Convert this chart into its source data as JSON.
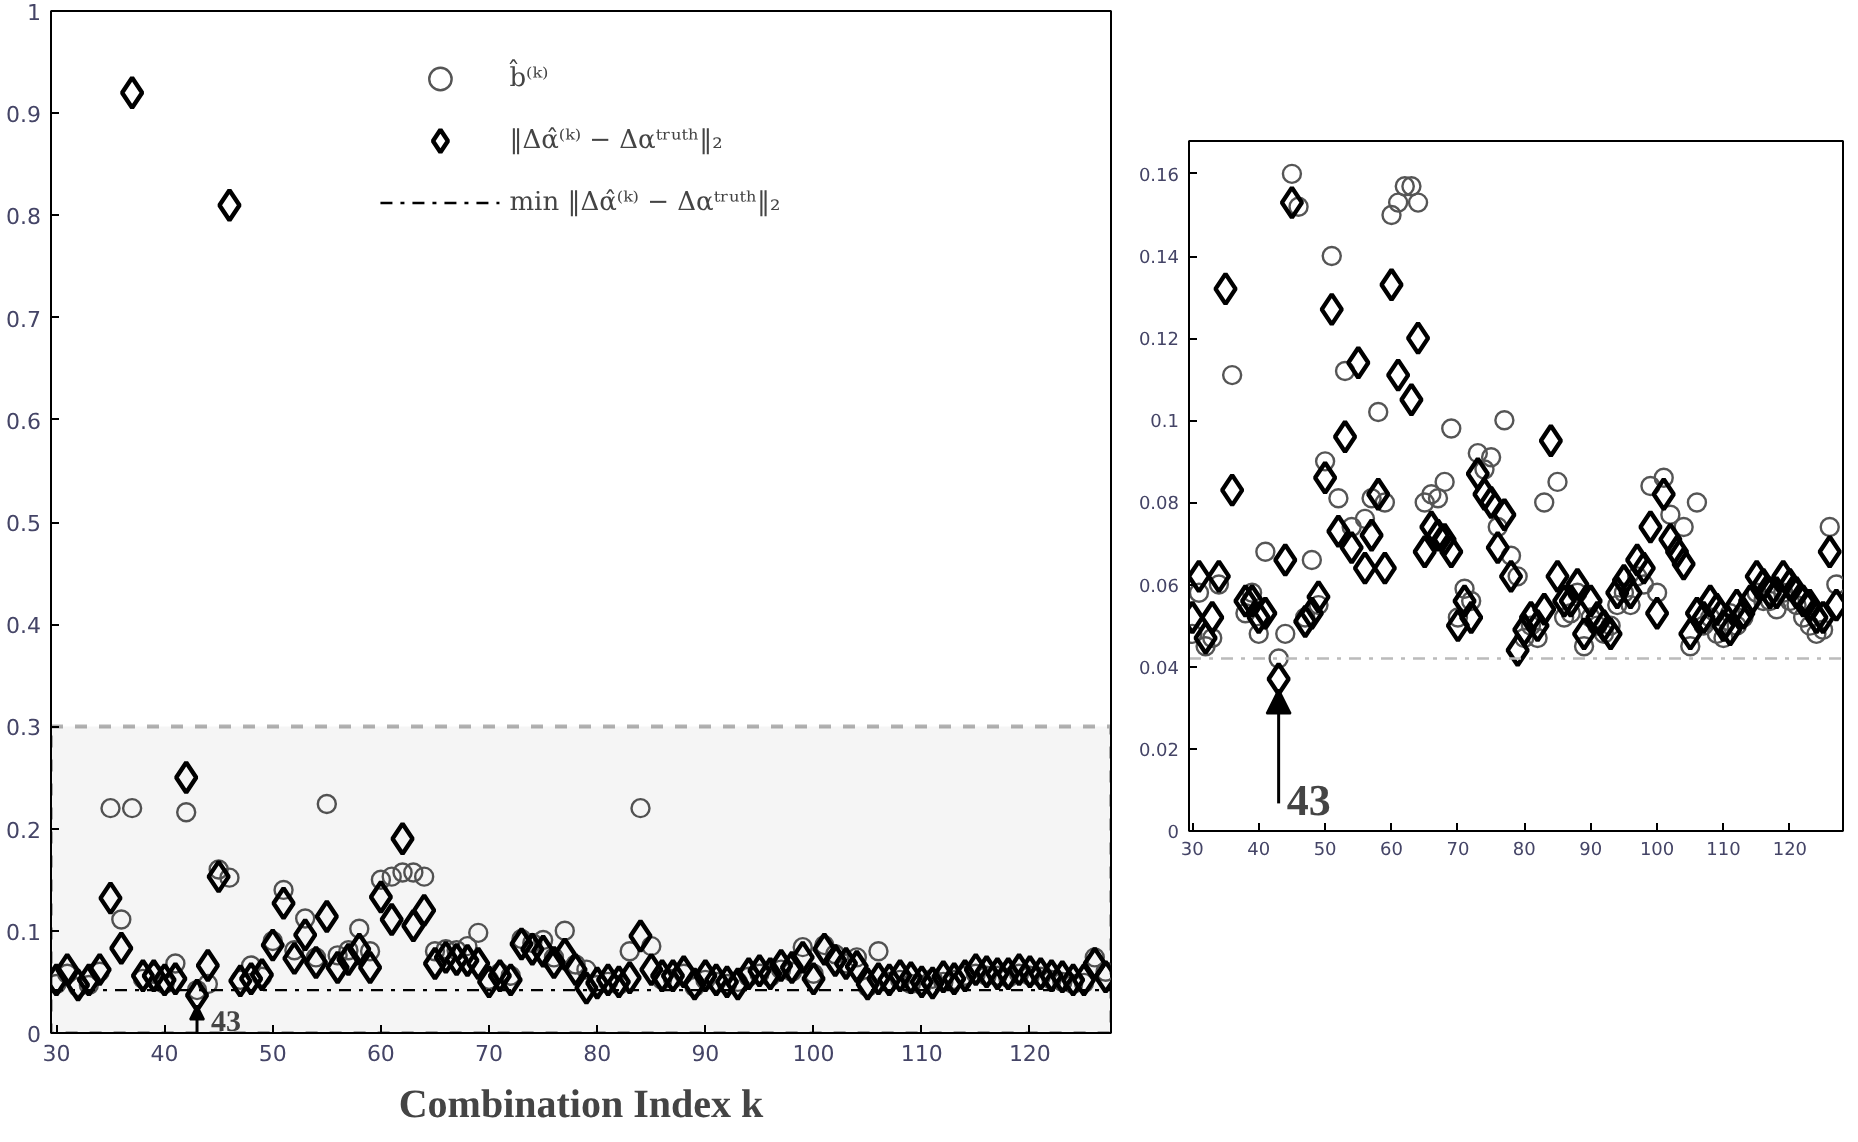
{
  "chart_data": [
    {
      "type": "scatter",
      "xlabel": "Combination Index k",
      "xlim": [
        29.5,
        127.5
      ],
      "ylim": [
        0,
        1
      ],
      "xticks": [
        30,
        40,
        50,
        60,
        70,
        80,
        90,
        100,
        110,
        120
      ],
      "yticks": [
        0,
        0.1,
        0.2,
        0.3,
        0.4,
        0.5,
        0.6,
        0.7,
        0.8,
        0.9,
        1
      ],
      "legend": "top",
      "grid": false,
      "x": [
        30,
        31,
        32,
        33,
        34,
        35,
        36,
        37,
        38,
        39,
        40,
        41,
        42,
        43,
        44,
        45,
        46,
        47,
        48,
        49,
        50,
        51,
        52,
        53,
        54,
        55,
        56,
        57,
        58,
        59,
        60,
        61,
        62,
        63,
        64,
        65,
        66,
        67,
        68,
        69,
        70,
        71,
        72,
        73,
        74,
        75,
        76,
        77,
        78,
        79,
        80,
        81,
        82,
        83,
        84,
        85,
        86,
        87,
        88,
        89,
        90,
        91,
        92,
        93,
        94,
        95,
        96,
        97,
        98,
        99,
        100,
        101,
        102,
        103,
        104,
        105,
        106,
        107,
        108,
        109,
        110,
        111,
        112,
        113,
        114,
        115,
        116,
        117,
        118,
        119,
        120,
        121,
        122,
        123,
        124,
        125,
        126,
        127
      ],
      "series": [
        {
          "name": "b̂⁽ᵏ⁾",
          "marker": "circle",
          "color": "#555555",
          "values": [
            0.048,
            0.058,
            0.045,
            0.047,
            0.06,
            0.22,
            0.111,
            0.22,
            0.053,
            0.058,
            0.048,
            0.068,
            0.216,
            0.042,
            0.048,
            0.16,
            0.152,
            0.052,
            0.066,
            0.055,
            0.09,
            0.14,
            0.081,
            0.112,
            0.074,
            0.224,
            0.076,
            0.081,
            0.102,
            0.08,
            0.15,
            0.153,
            0.157,
            0.157,
            0.153,
            0.08,
            0.082,
            0.081,
            0.085,
            0.098,
            0.052,
            0.059,
            0.056,
            0.092,
            0.088,
            0.091,
            0.074,
            0.1,
            0.067,
            0.062,
            0.047,
            0.05,
            0.047,
            0.08,
            0.22,
            0.085,
            0.052,
            0.053,
            0.058,
            0.045,
            0.052,
            0.05,
            0.048,
            0.05,
            0.055,
            0.058,
            0.055,
            0.062,
            0.06,
            0.084,
            0.058,
            0.086,
            0.077,
            0.068,
            0.074,
            0.045,
            0.08,
            0.05,
            0.052,
            0.048,
            0.047,
            0.053,
            0.05,
            0.052,
            0.056,
            0.058,
            0.056,
            0.056,
            0.054,
            0.058,
            0.056,
            0.055,
            0.052,
            0.05,
            0.048,
            0.049,
            0.074,
            0.06
          ]
        },
        {
          "name": "‖Δα̂⁽ᵏ⁾ − Δαᵗʳᵘᵗʰ‖₂",
          "marker": "diamond",
          "color": "#000000",
          "values": [
            0.052,
            0.062,
            0.047,
            0.052,
            0.062,
            0.132,
            0.083,
            0.92,
            0.056,
            0.056,
            0.052,
            0.053,
            0.25,
            0.037,
            0.066,
            0.153,
            0.81,
            0.051,
            0.053,
            0.057,
            0.086,
            0.127,
            0.073,
            0.096,
            0.069,
            0.114,
            0.064,
            0.072,
            0.082,
            0.064,
            0.133,
            0.111,
            0.19,
            0.105,
            0.12,
            0.068,
            0.074,
            0.072,
            0.071,
            0.068,
            0.05,
            0.056,
            0.052,
            0.087,
            0.082,
            0.08,
            0.069,
            0.077,
            0.062,
            0.044,
            0.049,
            0.052,
            0.05,
            0.054,
            0.095,
            0.062,
            0.056,
            0.056,
            0.06,
            0.048,
            0.056,
            0.052,
            0.05,
            0.048,
            0.058,
            0.061,
            0.058,
            0.066,
            0.064,
            0.074,
            0.053,
            0.082,
            0.071,
            0.068,
            0.065,
            0.048,
            0.053,
            0.052,
            0.056,
            0.054,
            0.05,
            0.049,
            0.055,
            0.053,
            0.056,
            0.062,
            0.06,
            0.058,
            0.058,
            0.062,
            0.06,
            0.058,
            0.056,
            0.055,
            0.052,
            0.052,
            0.068,
            0.055
          ]
        }
      ],
      "ref_lines": [
        {
          "axis": "y",
          "value": 0.042,
          "label": "min ‖Δα̂⁽ᵏ⁾ − Δαᵗʳᵘᵗʰ‖₂",
          "color": "#000000",
          "line_style": "dashdot"
        }
      ],
      "bands": [
        {
          "axis": "y",
          "from": 0,
          "to": 0.3,
          "color": "#000000"
        }
      ],
      "annotations": [
        {
          "text": "43",
          "x": 43,
          "y": 0.037
        }
      ]
    },
    {
      "type": "scatter",
      "xlim": [
        29.5,
        128
      ],
      "ylim": [
        0,
        0.168
      ],
      "xticks": [
        30,
        40,
        50,
        60,
        70,
        80,
        90,
        100,
        110,
        120
      ],
      "yticks": [
        0,
        0.02,
        0.04,
        0.06,
        0.08,
        0.1,
        0.12,
        0.14,
        0.16
      ],
      "grid": false,
      "x": [
        30,
        31,
        32,
        33,
        34,
        35,
        36,
        37,
        38,
        39,
        40,
        41,
        42,
        43,
        44,
        45,
        46,
        47,
        48,
        49,
        50,
        51,
        52,
        53,
        54,
        55,
        56,
        57,
        58,
        59,
        60,
        61,
        62,
        63,
        64,
        65,
        66,
        67,
        68,
        69,
        70,
        71,
        72,
        73,
        74,
        75,
        76,
        77,
        78,
        79,
        80,
        81,
        82,
        83,
        84,
        85,
        86,
        87,
        88,
        89,
        90,
        91,
        92,
        93,
        94,
        95,
        96,
        97,
        98,
        99,
        100,
        101,
        102,
        103,
        104,
        105,
        106,
        107,
        108,
        109,
        110,
        111,
        112,
        113,
        114,
        115,
        116,
        117,
        118,
        119,
        120,
        121,
        122,
        123,
        124,
        125,
        126,
        127
      ],
      "series": [
        {
          "marker": "circle",
          "color": "#555555",
          "values": [
            0.048,
            0.058,
            0.045,
            0.047,
            0.06,
            null,
            0.111,
            null,
            0.053,
            0.058,
            0.048,
            0.068,
            null,
            0.042,
            0.048,
            0.16,
            0.152,
            0.052,
            0.066,
            0.055,
            0.09,
            0.14,
            0.081,
            0.112,
            0.074,
            null,
            0.076,
            0.081,
            0.102,
            0.08,
            0.15,
            0.153,
            0.157,
            0.157,
            0.153,
            0.08,
            0.082,
            0.081,
            0.085,
            0.098,
            0.052,
            0.059,
            0.056,
            0.092,
            0.088,
            0.091,
            0.074,
            0.1,
            0.067,
            0.062,
            0.047,
            0.05,
            0.047,
            0.08,
            null,
            0.085,
            0.052,
            0.053,
            0.058,
            0.045,
            0.052,
            0.05,
            0.048,
            0.05,
            0.055,
            0.058,
            0.055,
            0.062,
            0.06,
            0.084,
            0.058,
            0.086,
            0.077,
            null,
            0.074,
            0.045,
            0.08,
            0.05,
            0.052,
            0.048,
            0.047,
            0.053,
            0.05,
            0.052,
            null,
            0.058,
            0.056,
            0.056,
            0.054,
            0.058,
            0.056,
            0.055,
            0.052,
            0.05,
            0.048,
            0.049,
            0.074,
            0.06
          ]
        },
        {
          "marker": "diamond",
          "color": "#000000",
          "values": [
            0.052,
            0.062,
            0.047,
            0.052,
            0.062,
            0.132,
            0.083,
            null,
            0.056,
            0.056,
            0.052,
            0.053,
            null,
            0.037,
            0.066,
            0.153,
            null,
            0.051,
            0.053,
            0.057,
            0.086,
            0.127,
            0.073,
            0.096,
            0.069,
            0.114,
            0.064,
            0.072,
            0.082,
            0.064,
            0.133,
            0.111,
            null,
            0.105,
            0.12,
            0.068,
            0.074,
            0.072,
            0.071,
            0.068,
            0.05,
            0.056,
            0.052,
            0.087,
            0.082,
            0.08,
            0.069,
            0.077,
            0.062,
            0.044,
            0.049,
            0.052,
            0.05,
            0.054,
            0.095,
            0.062,
            0.056,
            0.056,
            0.06,
            0.048,
            0.056,
            0.052,
            0.05,
            0.048,
            0.058,
            0.061,
            0.058,
            0.066,
            0.064,
            0.074,
            0.053,
            0.082,
            0.071,
            0.068,
            0.065,
            0.048,
            0.053,
            0.052,
            0.056,
            0.054,
            0.05,
            0.049,
            0.055,
            0.053,
            0.056,
            0.062,
            0.06,
            0.058,
            0.058,
            0.062,
            0.06,
            0.058,
            0.056,
            0.055,
            0.052,
            0.052,
            0.068,
            0.055
          ]
        }
      ],
      "ref_lines": [
        {
          "axis": "y",
          "value": 0.042,
          "color": "#bbbbbb",
          "line_style": "dashdot"
        }
      ],
      "annotations": [
        {
          "text": "43",
          "x": 43,
          "y": 0.037
        }
      ]
    }
  ]
}
